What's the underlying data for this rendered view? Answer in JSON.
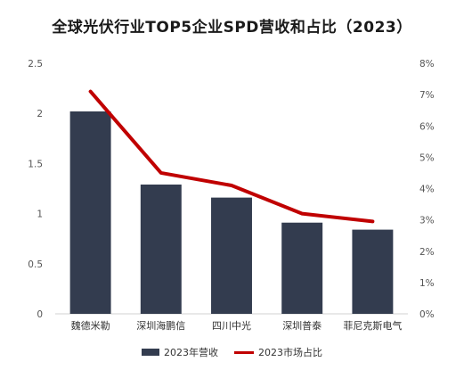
{
  "chart_data": {
    "type": "bar",
    "title": "全球光伏行业TOP5企业SPD营收和占比（2023）",
    "categories": [
      "魏德米勒",
      "深圳海鹏信",
      "四川中光",
      "深圳普泰",
      "菲尼克斯电气"
    ],
    "series": [
      {
        "name": "2023年营收",
        "type": "bar",
        "axis": "left",
        "color": "#333c4f",
        "values": [
          2.02,
          1.29,
          1.16,
          0.91,
          0.84
        ]
      },
      {
        "name": "2023市场占比",
        "type": "line",
        "axis": "right",
        "color": "#c00000",
        "values": [
          7.1,
          4.5,
          4.1,
          3.2,
          2.95
        ]
      }
    ],
    "y_left": {
      "ylim": [
        0,
        2.5
      ],
      "ticks": [
        "0",
        "0.5",
        "1",
        "1.5",
        "2",
        "2.5"
      ]
    },
    "y_right": {
      "ylim": [
        0,
        8
      ],
      "ticks": [
        "0%",
        "1%",
        "2%",
        "3%",
        "4%",
        "5%",
        "6%",
        "7%",
        "8%"
      ]
    },
    "grid": false,
    "legend_position": "bottom"
  }
}
